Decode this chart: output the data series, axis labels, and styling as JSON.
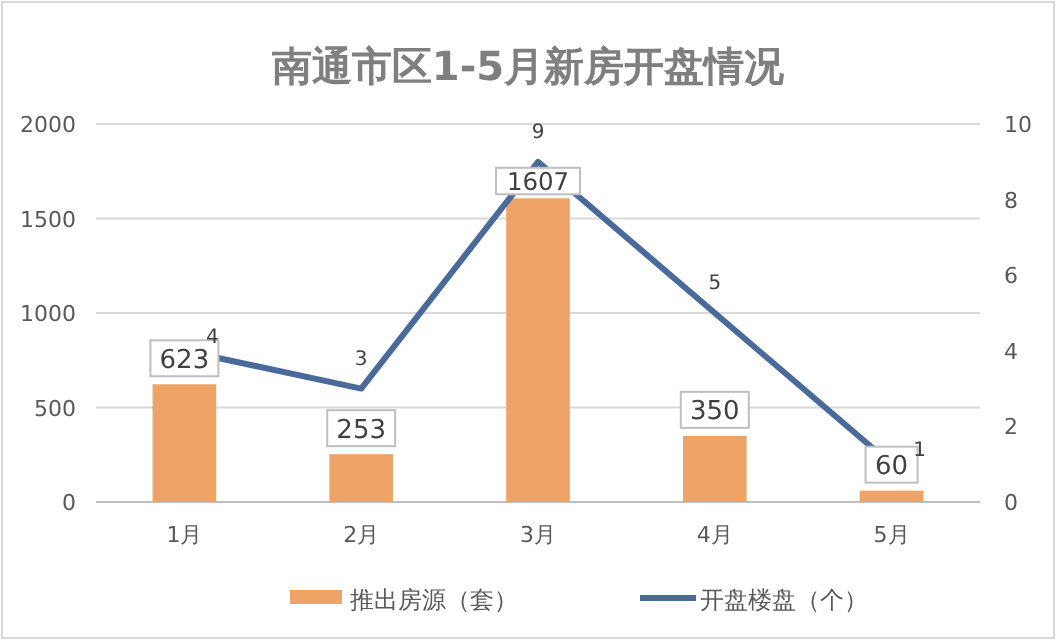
{
  "chart_data": {
    "type": "bar",
    "title": "南通市区1-5月新房开盘情况",
    "categories": [
      "1月",
      "2月",
      "3月",
      "4月",
      "5月"
    ],
    "series": [
      {
        "name": "推出房源（套）",
        "type": "bar",
        "color": "#eea466",
        "values": [
          623,
          253,
          1607,
          350,
          60
        ]
      },
      {
        "name": "开盘楼盘（个）",
        "type": "line",
        "axis": "y2",
        "color": "#4a6a9c",
        "values": [
          4,
          3,
          9,
          5,
          1
        ]
      }
    ],
    "ylim": [
      0,
      2000
    ],
    "yticks": [
      0,
      500,
      1000,
      1500,
      2000
    ],
    "y2lim": [
      0,
      10
    ],
    "y2ticks": [
      0,
      2,
      4,
      6,
      8,
      10
    ],
    "grid": "y",
    "legend": "bottom",
    "data_labels": true,
    "marker": "none",
    "line_style": "solid"
  }
}
